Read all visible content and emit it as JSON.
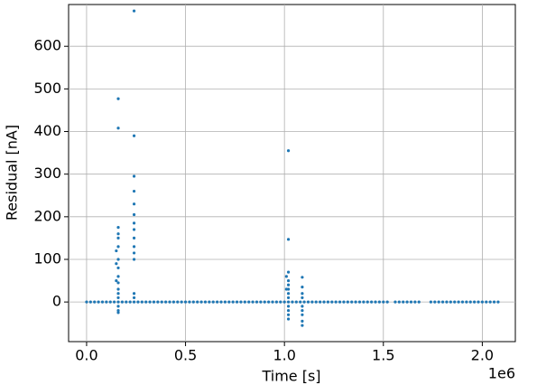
{
  "chart_data": {
    "type": "scatter",
    "x_label": "Time [s]",
    "y_label": "Residual [nA]",
    "x_offset_label": "1e6",
    "xlim": [
      -91000,
      2167000
    ],
    "ylim": [
      -93,
      698
    ],
    "xticks": [
      {
        "value": 0,
        "label": "0.0"
      },
      {
        "value": 500000,
        "label": "0.5"
      },
      {
        "value": 1000000,
        "label": "1.0"
      },
      {
        "value": 1500000,
        "label": "1.5"
      },
      {
        "value": 2000000,
        "label": "2.0"
      }
    ],
    "yticks": [
      0,
      100,
      200,
      300,
      400,
      500,
      600
    ],
    "grid": true,
    "series": [
      {
        "color": "#1f77b4",
        "x": [
          0,
          20000,
          40000,
          60000,
          80000,
          100000,
          120000,
          140000,
          160000,
          180000,
          200000,
          220000,
          240000,
          260000,
          280000,
          300000,
          320000,
          340000,
          360000,
          380000,
          400000,
          420000,
          440000,
          460000,
          480000,
          500000,
          520000,
          540000,
          560000,
          580000,
          600000,
          620000,
          640000,
          660000,
          680000,
          700000,
          720000,
          740000,
          760000,
          780000,
          800000,
          820000,
          840000,
          860000,
          880000,
          900000,
          920000,
          940000,
          960000,
          980000,
          1000000,
          1020000,
          1040000,
          1060000,
          1080000,
          1100000,
          1120000,
          1140000,
          1160000,
          1180000,
          1200000,
          1220000,
          1240000,
          1260000,
          1280000,
          1300000,
          1320000,
          1340000,
          1360000,
          1380000,
          1400000,
          1420000,
          1440000,
          1460000,
          1480000,
          1500000,
          1520000,
          1560000,
          1580000,
          1600000,
          1620000,
          1640000,
          1660000,
          1680000,
          1740000,
          1760000,
          1780000,
          1800000,
          1820000,
          1840000,
          1860000,
          1880000,
          1900000,
          1920000,
          1940000,
          1960000,
          1980000,
          2000000,
          2020000,
          2040000,
          2060000,
          2080000
        ],
        "values": [
          0,
          0,
          0,
          0,
          0,
          0,
          0,
          0,
          0,
          0,
          0,
          0,
          0,
          0,
          0,
          0,
          0,
          0,
          0,
          0,
          0,
          0,
          0,
          0,
          0,
          0,
          0,
          0,
          0,
          0,
          0,
          0,
          0,
          0,
          0,
          0,
          0,
          0,
          0,
          0,
          0,
          0,
          0,
          0,
          0,
          0,
          0,
          0,
          0,
          0,
          0,
          0,
          0,
          0,
          0,
          0,
          0,
          0,
          0,
          0,
          0,
          0,
          0,
          0,
          0,
          0,
          0,
          0,
          0,
          0,
          0,
          0,
          0,
          0,
          0,
          0,
          0,
          0,
          0,
          0,
          0,
          0,
          0,
          0,
          0,
          0,
          0,
          0,
          0,
          0,
          0,
          0,
          0,
          0,
          0,
          0,
          0,
          0,
          0,
          0,
          0,
          0
        ]
      },
      {
        "color": "#1f77b4",
        "x": [
          150000,
          150000,
          150000,
          160000,
          160000,
          160000,
          160000,
          160000,
          160000,
          160000,
          160000,
          160000,
          160000,
          160000,
          160000,
          160000,
          160000,
          160000,
          160000,
          240000,
          240000,
          240000,
          240000,
          240000,
          240000,
          240000,
          240000,
          240000,
          240000,
          240000,
          240000,
          240000,
          240000,
          1010000,
          1010000,
          1020000,
          1020000,
          1020000,
          1020000,
          1020000,
          1020000,
          1020000,
          1020000,
          1020000,
          1020000,
          1020000,
          1020000,
          1090000,
          1090000,
          1090000,
          1090000,
          1090000,
          1090000,
          1090000,
          1090000,
          1090000
        ],
        "values": [
          120,
          90,
          50,
          477,
          408,
          175,
          160,
          150,
          130,
          100,
          80,
          60,
          45,
          30,
          20,
          10,
          -10,
          -20,
          -25,
          683,
          390,
          295,
          260,
          230,
          205,
          185,
          170,
          150,
          130,
          115,
          100,
          20,
          10,
          60,
          30,
          355,
          147,
          70,
          50,
          40,
          30,
          20,
          10,
          -10,
          -20,
          -30,
          -40,
          58,
          35,
          20,
          10,
          -10,
          -20,
          -30,
          -45,
          -55
        ]
      }
    ]
  }
}
